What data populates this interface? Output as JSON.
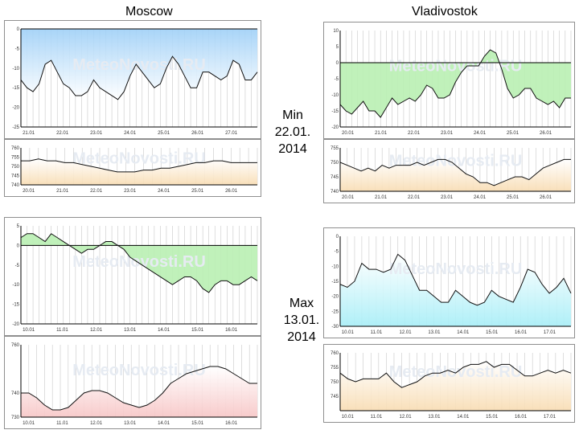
{
  "columns": {
    "left": "Moscow",
    "right": "Vladivostok"
  },
  "labels": {
    "min": {
      "line1": "Min",
      "line2": "22.01.",
      "line3": "2014"
    },
    "max": {
      "line1": "Max",
      "line2": "13.01.",
      "line3": "2014"
    }
  },
  "colors": {
    "line": "#111111",
    "axis": "#000000",
    "grid": "#c8c8c8",
    "blue": "#9fd0f7",
    "green": "#b9f0b2",
    "cyan": "#a7eef7",
    "orange": "#f8dcb2",
    "pink": "#f7c6c6",
    "watermark": "#e6ebf2"
  },
  "chart_data": [
    {
      "id": "moscow-min-temp",
      "type": "area",
      "watermark": "MeteoNovosti.RU",
      "ylim": [
        -25,
        0
      ],
      "yticks": [
        "0",
        "-5",
        "-10",
        "-15",
        "-20",
        "-25"
      ],
      "xticks": [
        "21.01",
        "22.01",
        "23.01",
        "24.01",
        "25.01",
        "26.01",
        "27.01"
      ],
      "fill": "blue",
      "baseline": 0,
      "fill_mode": "above",
      "values": [
        -13,
        -15,
        -16,
        -14,
        -9,
        -8,
        -11,
        -14,
        -15,
        -17,
        -17,
        -16,
        -13,
        -15,
        -16,
        -17,
        -18,
        -16,
        -12,
        -9,
        -11,
        -13,
        -15,
        -14,
        -10,
        -7,
        -9,
        -12,
        -15,
        -15,
        -11,
        -11,
        -12,
        -13,
        -12,
        -8,
        -9,
        -13,
        -13,
        -11
      ]
    },
    {
      "id": "moscow-min-pressure",
      "type": "area",
      "watermark": "MeteoNovosti.RU",
      "ylim": [
        740,
        760
      ],
      "yticks": [
        "760",
        "755",
        "750",
        "745",
        "740"
      ],
      "xticks": [
        "20.01",
        "21.01",
        "22.01",
        "23.01",
        "24.01",
        "25.01",
        "26.01"
      ],
      "fill": "orange",
      "fill_mode": "below",
      "values": [
        753,
        753,
        754,
        753,
        753,
        752,
        752,
        751,
        750,
        749,
        748,
        747,
        747,
        747,
        748,
        748,
        749,
        749,
        750,
        751,
        752,
        752,
        753,
        753,
        752,
        752,
        752,
        752
      ]
    },
    {
      "id": "moscow-max-temp",
      "type": "area",
      "watermark": "MeteoNovosti.RU",
      "ylim": [
        -20,
        5
      ],
      "yticks": [
        "5",
        "0",
        "-5",
        "-10",
        "-15",
        "-20"
      ],
      "xticks": [
        "10.01",
        "11.01",
        "12.01",
        "13.01",
        "14.01",
        "15.01",
        "16.01"
      ],
      "fill": "green",
      "baseline": 0,
      "fill_mode": "baseline",
      "values": [
        2,
        3,
        3,
        2,
        1,
        3,
        2,
        1,
        0,
        -1,
        -2,
        -1,
        -1,
        0,
        1,
        1,
        0,
        -1,
        -3,
        -4,
        -5,
        -6,
        -7,
        -8,
        -9,
        -10,
        -9,
        -8,
        -8,
        -9,
        -11,
        -12,
        -10,
        -9,
        -9,
        -10,
        -10,
        -9,
        -8,
        -9
      ]
    },
    {
      "id": "moscow-max-pressure",
      "type": "area",
      "watermark": "MeteoNovosti.RU",
      "ylim": [
        730,
        760
      ],
      "yticks": [
        "760",
        "740",
        "730"
      ],
      "xticks": [
        "10.01",
        "11.01",
        "12.01",
        "13.01",
        "14.01",
        "15.01",
        "16.01"
      ],
      "fill": "pink",
      "fill_mode": "below",
      "values": [
        740,
        740,
        738,
        735,
        733,
        733,
        734,
        737,
        740,
        741,
        741,
        740,
        738,
        736,
        735,
        734,
        735,
        737,
        740,
        744,
        746,
        748,
        749,
        750,
        751,
        751,
        750,
        748,
        746,
        744,
        744
      ]
    },
    {
      "id": "vladivostok-min-temp",
      "type": "area",
      "watermark": "MeteoNovosti.RU",
      "ylim": [
        -20,
        10
      ],
      "yticks": [
        "10",
        "5",
        "0",
        "-5",
        "-10",
        "-15",
        "-20"
      ],
      "xticks": [
        "20.01",
        "21.01",
        "22.01",
        "23.01",
        "24.01",
        "25.01",
        "26.01"
      ],
      "fill": "green",
      "baseline": 0,
      "fill_mode": "baseline",
      "values": [
        -13,
        -15,
        -16,
        -14,
        -12,
        -15,
        -15,
        -17,
        -14,
        -11,
        -13,
        -12,
        -11,
        -12,
        -10,
        -7,
        -8,
        -11,
        -11,
        -10,
        -6,
        -3,
        -1,
        -1,
        -1,
        2,
        4,
        3,
        -2,
        -8,
        -11,
        -10,
        -8,
        -8,
        -11,
        -12,
        -13,
        -12,
        -14,
        -11,
        -11
      ]
    },
    {
      "id": "vladivostok-min-pressure",
      "type": "area",
      "watermark": "MeteoNovosti.RU",
      "ylim": [
        740,
        755
      ],
      "yticks": [
        "755",
        "750",
        "745",
        "740"
      ],
      "xticks": [
        "20.01",
        "21.01",
        "22.01",
        "23.01",
        "24.01",
        "25.01",
        "26.01"
      ],
      "fill": "orange",
      "fill_mode": "below",
      "values": [
        750,
        749,
        748,
        747,
        748,
        747,
        749,
        748,
        749,
        749,
        749,
        750,
        749,
        750,
        751,
        751,
        750,
        748,
        746,
        745,
        743,
        743,
        742,
        743,
        744,
        745,
        745,
        744,
        746,
        748,
        749,
        750,
        751,
        751
      ]
    },
    {
      "id": "vladivostok-max-temp",
      "type": "area",
      "watermark": "MeteoNovosti.RU",
      "ylim": [
        -30,
        0
      ],
      "yticks": [
        "0",
        "-5",
        "-10",
        "-15",
        "-20",
        "-25",
        "-30"
      ],
      "xticks": [
        "10.01",
        "11.01",
        "12.01",
        "13.01",
        "14.01",
        "15.01",
        "16.01",
        "17.01"
      ],
      "fill": "cyan",
      "fill_mode": "below",
      "values": [
        -16,
        -17,
        -15,
        -9,
        -11,
        -11,
        -12,
        -11,
        -6,
        -8,
        -13,
        -18,
        -18,
        -20,
        -22,
        -22,
        -18,
        -20,
        -22,
        -23,
        -22,
        -18,
        -20,
        -21,
        -22,
        -17,
        -11,
        -12,
        -16,
        -19,
        -17,
        -14,
        -19
      ]
    },
    {
      "id": "vladivostok-max-pressure",
      "type": "area",
      "watermark": "MeteoNovosti.RU",
      "ylim": [
        740,
        760
      ],
      "yticks": [
        "760",
        "755",
        "750",
        "745"
      ],
      "xticks": [
        "10.01",
        "11.01",
        "12.01",
        "13.01",
        "14.01",
        "15.01",
        "16.01",
        "17.01"
      ],
      "fill": "orange",
      "fill_mode": "below",
      "values": [
        753,
        751,
        750,
        751,
        751,
        751,
        753,
        750,
        748,
        749,
        750,
        752,
        753,
        753,
        754,
        753,
        755,
        756,
        756,
        757,
        755,
        756,
        756,
        754,
        752,
        752,
        753,
        754,
        753,
        754,
        753
      ]
    }
  ]
}
